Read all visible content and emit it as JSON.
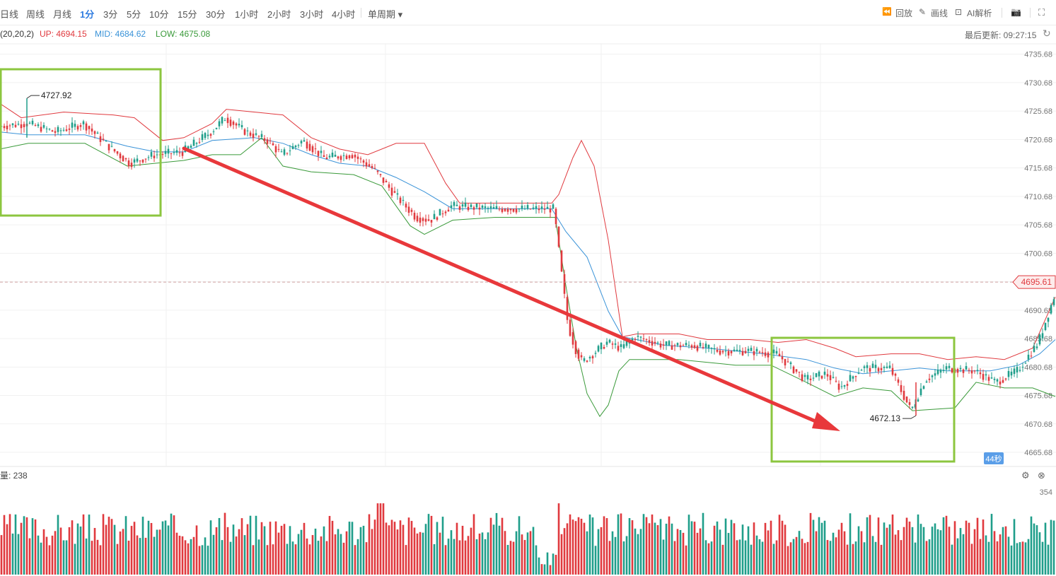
{
  "toolbar": {
    "timeframes": [
      "日线",
      "周线",
      "月线",
      "1分",
      "3分",
      "5分",
      "10分",
      "15分",
      "30分",
      "1小时",
      "2小时",
      "3小时",
      "4小时"
    ],
    "active_timeframe": "1分",
    "single_period": "单周期",
    "replay": "回放",
    "draw": "画线",
    "ai": "AI解析",
    "camera_icon": "camera-icon",
    "fullscreen_icon": "fullscreen-icon"
  },
  "indicator": {
    "params": "(20,20,2)",
    "up_label": "UP: 4694.15",
    "mid_label": "MID: 4684.62",
    "low_label": "LOW: 4675.08",
    "last_update": "最后更新: 09:27:15",
    "refresh_icon": "refresh-icon"
  },
  "colors": {
    "up": "#e0393e",
    "mid": "#3a93d8",
    "low": "#3a9a3a",
    "bull": "#1f9e8a",
    "bear": "#e0393e",
    "box": "#8cc63f",
    "arrow": "#e8383b",
    "price_tag": "#e0393e"
  },
  "volume": {
    "label": "量: 238",
    "axis_max": "354",
    "gear_icon": "gear-icon",
    "close_icon": "close-icon"
  },
  "countdown": "44秒",
  "chart_data": {
    "type": "candlestick",
    "y_ticks": [
      4735.68,
      4730.68,
      4725.68,
      4720.68,
      4715.68,
      4710.68,
      4705.68,
      4700.68,
      4695.68,
      4690.68,
      4685.68,
      4680.68,
      4675.68,
      4670.68,
      4665.68
    ],
    "y_tick_labels": [
      "4735.68",
      "4730.68",
      "4725.68",
      "4720.68",
      "4715.68",
      "4710.68",
      "4705.68",
      "4700.68",
      "",
      "4690.68",
      "4685.68",
      "4680.68",
      "4675.68",
      "4670.68",
      "4665.68"
    ],
    "ylim": [
      4663.2,
      4737.5
    ],
    "current_price": 4695.61,
    "current_price_label": "4695.61",
    "annotations": [
      {
        "label": "4727.92",
        "value": 4727.92
      },
      {
        "label": "4672.13",
        "value": 4672.13
      }
    ],
    "price_path": [
      [
        0,
        4723
      ],
      [
        40,
        4723.5
      ],
      [
        80,
        4722
      ],
      [
        120,
        4723.5
      ],
      [
        160,
        4719
      ],
      [
        185,
        4716.5
      ],
      [
        220,
        4718
      ],
      [
        260,
        4718.5
      ],
      [
        300,
        4722
      ],
      [
        320,
        4724.5
      ],
      [
        350,
        4722
      ],
      [
        380,
        4720.5
      ],
      [
        400,
        4718
      ],
      [
        430,
        4720.5
      ],
      [
        460,
        4717.5
      ],
      [
        500,
        4718
      ],
      [
        530,
        4715.5
      ],
      [
        560,
        4711
      ],
      [
        590,
        4707
      ],
      [
        610,
        4706.5
      ],
      [
        640,
        4709
      ],
      [
        700,
        4708.5
      ],
      [
        760,
        4708.5
      ],
      [
        785,
        4708.5
      ],
      [
        795,
        4698
      ],
      [
        805,
        4688
      ],
      [
        815,
        4684
      ],
      [
        825,
        4681.5
      ],
      [
        860,
        4685
      ],
      [
        880,
        4684
      ],
      [
        900,
        4686
      ],
      [
        940,
        4684.5
      ],
      [
        980,
        4684.5
      ],
      [
        1020,
        4683.5
      ],
      [
        1060,
        4683.5
      ],
      [
        1100,
        4683
      ],
      [
        1140,
        4678.5
      ],
      [
        1170,
        4679.5
      ],
      [
        1190,
        4677
      ],
      [
        1220,
        4680.5
      ],
      [
        1260,
        4680.5
      ],
      [
        1290,
        4673
      ],
      [
        1310,
        4678.5
      ],
      [
        1340,
        4680.5
      ],
      [
        1380,
        4680
      ],
      [
        1410,
        4678
      ],
      [
        1440,
        4680
      ],
      [
        1470,
        4685
      ],
      [
        1492,
        4693
      ]
    ],
    "upper_band": [
      [
        0,
        4727
      ],
      [
        30,
        4724.5
      ],
      [
        90,
        4725.5
      ],
      [
        160,
        4725
      ],
      [
        190,
        4724.5
      ],
      [
        230,
        4720.5
      ],
      [
        260,
        4721
      ],
      [
        300,
        4723.5
      ],
      [
        320,
        4726
      ],
      [
        360,
        4725.5
      ],
      [
        400,
        4725
      ],
      [
        440,
        4721
      ],
      [
        480,
        4719
      ],
      [
        520,
        4718
      ],
      [
        560,
        4720
      ],
      [
        600,
        4720
      ],
      [
        630,
        4713
      ],
      [
        650,
        4709.5
      ],
      [
        700,
        4709.5
      ],
      [
        780,
        4709.5
      ],
      [
        790,
        4711
      ],
      [
        810,
        4717.5
      ],
      [
        822,
        4720.5
      ],
      [
        840,
        4716
      ],
      [
        860,
        4703
      ],
      [
        880,
        4686
      ],
      [
        900,
        4686.5
      ],
      [
        960,
        4686.5
      ],
      [
        1000,
        4685.5
      ],
      [
        1060,
        4685.5
      ],
      [
        1100,
        4685
      ],
      [
        1140,
        4685.5
      ],
      [
        1180,
        4684
      ],
      [
        1210,
        4682.5
      ],
      [
        1260,
        4683
      ],
      [
        1300,
        4683
      ],
      [
        1340,
        4682
      ],
      [
        1380,
        4682.5
      ],
      [
        1420,
        4682
      ],
      [
        1460,
        4684
      ],
      [
        1492,
        4693
      ]
    ],
    "middle_band": [
      [
        0,
        4722
      ],
      [
        40,
        4721.5
      ],
      [
        120,
        4721.5
      ],
      [
        180,
        4719.5
      ],
      [
        220,
        4718.5
      ],
      [
        260,
        4718.5
      ],
      [
        300,
        4720.5
      ],
      [
        360,
        4721
      ],
      [
        400,
        4720
      ],
      [
        440,
        4718
      ],
      [
        480,
        4716.5
      ],
      [
        520,
        4716
      ],
      [
        560,
        4714
      ],
      [
        600,
        4711.5
      ],
      [
        640,
        4708.5
      ],
      [
        700,
        4708.5
      ],
      [
        780,
        4708.5
      ],
      [
        800,
        4704.5
      ],
      [
        830,
        4700
      ],
      [
        860,
        4690.5
      ],
      [
        880,
        4686
      ],
      [
        940,
        4684.5
      ],
      [
        1000,
        4684
      ],
      [
        1080,
        4683
      ],
      [
        1140,
        4682
      ],
      [
        1180,
        4680.5
      ],
      [
        1220,
        4679.5
      ],
      [
        1260,
        4680
      ],
      [
        1300,
        4680.5
      ],
      [
        1340,
        4680
      ],
      [
        1400,
        4680
      ],
      [
        1440,
        4681
      ],
      [
        1470,
        4683
      ],
      [
        1492,
        4685.5
      ]
    ],
    "lower_band": [
      [
        0,
        4719
      ],
      [
        40,
        4720
      ],
      [
        120,
        4720
      ],
      [
        180,
        4716
      ],
      [
        220,
        4716.5
      ],
      [
        260,
        4717
      ],
      [
        300,
        4718
      ],
      [
        340,
        4718
      ],
      [
        370,
        4721
      ],
      [
        400,
        4716
      ],
      [
        440,
        4715
      ],
      [
        500,
        4714.5
      ],
      [
        540,
        4712.5
      ],
      [
        580,
        4705.5
      ],
      [
        600,
        4704
      ],
      [
        640,
        4706.5
      ],
      [
        700,
        4707
      ],
      [
        760,
        4707
      ],
      [
        785,
        4707
      ],
      [
        800,
        4695
      ],
      [
        815,
        4684
      ],
      [
        830,
        4676
      ],
      [
        848,
        4672
      ],
      [
        860,
        4674
      ],
      [
        875,
        4680
      ],
      [
        890,
        4682
      ],
      [
        960,
        4682
      ],
      [
        1040,
        4681
      ],
      [
        1090,
        4681
      ],
      [
        1140,
        4678
      ],
      [
        1180,
        4675.5
      ],
      [
        1220,
        4677
      ],
      [
        1260,
        4676.5
      ],
      [
        1290,
        4673
      ],
      [
        1350,
        4673.5
      ],
      [
        1380,
        4678
      ],
      [
        1420,
        4677
      ],
      [
        1460,
        4677
      ],
      [
        1492,
        4675.5
      ]
    ],
    "volume_ylim": [
      0,
      354
    ]
  }
}
